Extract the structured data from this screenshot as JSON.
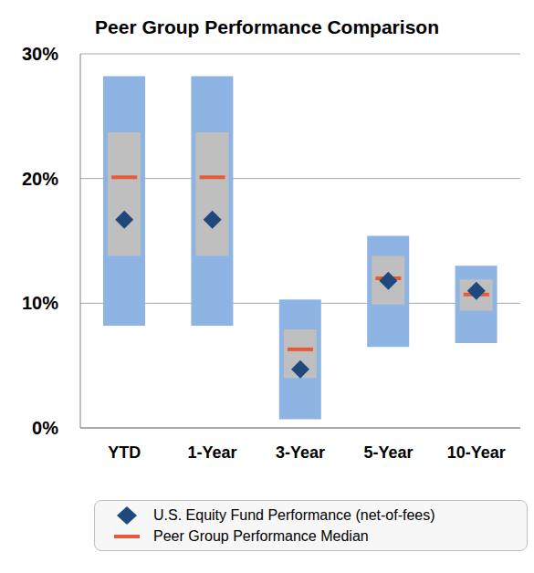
{
  "chart_data": {
    "type": "range",
    "title": "Peer Group Performance Comparison",
    "categories": [
      "YTD",
      "1-Year",
      "3-Year",
      "5-Year",
      "10-Year"
    ],
    "ranges": [
      {
        "color": "#8db4e2",
        "low": [
          8.2,
          8.2,
          0.7,
          6.5,
          6.8
        ],
        "high": [
          28.2,
          28.2,
          10.3,
          15.4,
          13.0
        ]
      },
      {
        "color": "#bfbfbf",
        "low": [
          13.8,
          13.8,
          4.0,
          9.9,
          9.4
        ],
        "high": [
          23.7,
          23.7,
          7.9,
          13.8,
          11.9
        ]
      }
    ],
    "series": [
      {
        "name": "U.S. Equity Fund Performance (net-of-fees)",
        "color": "#1f497d",
        "marker": "diamond",
        "values": [
          16.7,
          16.7,
          4.7,
          11.8,
          11.0
        ]
      },
      {
        "name": "Peer Group Performance Median",
        "color": "#e8593a",
        "marker": "dash",
        "values": [
          20.1,
          20.1,
          6.3,
          12.0,
          10.7
        ]
      }
    ],
    "ylim": [
      0,
      30
    ],
    "yticks": [
      {
        "value": 0,
        "label": "0%"
      },
      {
        "value": 10,
        "label": "10%"
      },
      {
        "value": 20,
        "label": "20%"
      },
      {
        "value": 30,
        "label": "30%"
      }
    ],
    "grid": true,
    "legend": "bottom"
  }
}
